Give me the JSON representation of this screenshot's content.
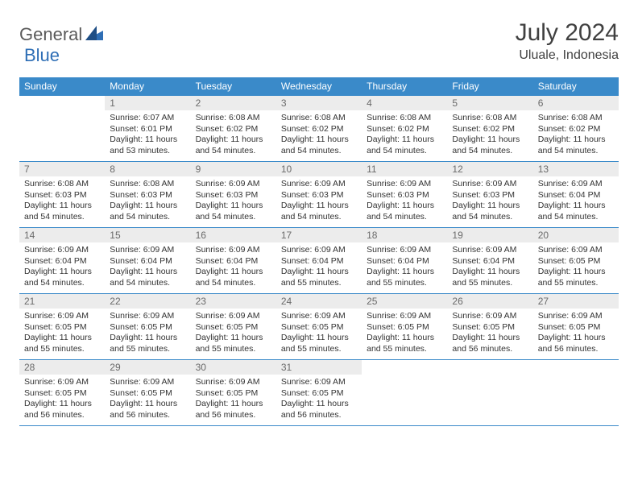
{
  "brand": {
    "part1": "General",
    "part2": "Blue"
  },
  "title": "July 2024",
  "location": "Uluale, Indonesia",
  "colors": {
    "header_bg": "#3a8ac9",
    "header_text": "#ffffff",
    "daynum_bg": "#ececec",
    "daynum_text": "#6a6a6a",
    "border": "#3a8ac9",
    "title_color": "#404040"
  },
  "daysOfWeek": [
    "Sunday",
    "Monday",
    "Tuesday",
    "Wednesday",
    "Thursday",
    "Friday",
    "Saturday"
  ],
  "weeks": [
    [
      {
        "n": "",
        "sr": "",
        "ss": "",
        "dl": ""
      },
      {
        "n": "1",
        "sr": "6:07 AM",
        "ss": "6:01 PM",
        "dl": "11 hours and 53 minutes."
      },
      {
        "n": "2",
        "sr": "6:08 AM",
        "ss": "6:02 PM",
        "dl": "11 hours and 54 minutes."
      },
      {
        "n": "3",
        "sr": "6:08 AM",
        "ss": "6:02 PM",
        "dl": "11 hours and 54 minutes."
      },
      {
        "n": "4",
        "sr": "6:08 AM",
        "ss": "6:02 PM",
        "dl": "11 hours and 54 minutes."
      },
      {
        "n": "5",
        "sr": "6:08 AM",
        "ss": "6:02 PM",
        "dl": "11 hours and 54 minutes."
      },
      {
        "n": "6",
        "sr": "6:08 AM",
        "ss": "6:02 PM",
        "dl": "11 hours and 54 minutes."
      }
    ],
    [
      {
        "n": "7",
        "sr": "6:08 AM",
        "ss": "6:03 PM",
        "dl": "11 hours and 54 minutes."
      },
      {
        "n": "8",
        "sr": "6:08 AM",
        "ss": "6:03 PM",
        "dl": "11 hours and 54 minutes."
      },
      {
        "n": "9",
        "sr": "6:09 AM",
        "ss": "6:03 PM",
        "dl": "11 hours and 54 minutes."
      },
      {
        "n": "10",
        "sr": "6:09 AM",
        "ss": "6:03 PM",
        "dl": "11 hours and 54 minutes."
      },
      {
        "n": "11",
        "sr": "6:09 AM",
        "ss": "6:03 PM",
        "dl": "11 hours and 54 minutes."
      },
      {
        "n": "12",
        "sr": "6:09 AM",
        "ss": "6:03 PM",
        "dl": "11 hours and 54 minutes."
      },
      {
        "n": "13",
        "sr": "6:09 AM",
        "ss": "6:04 PM",
        "dl": "11 hours and 54 minutes."
      }
    ],
    [
      {
        "n": "14",
        "sr": "6:09 AM",
        "ss": "6:04 PM",
        "dl": "11 hours and 54 minutes."
      },
      {
        "n": "15",
        "sr": "6:09 AM",
        "ss": "6:04 PM",
        "dl": "11 hours and 54 minutes."
      },
      {
        "n": "16",
        "sr": "6:09 AM",
        "ss": "6:04 PM",
        "dl": "11 hours and 54 minutes."
      },
      {
        "n": "17",
        "sr": "6:09 AM",
        "ss": "6:04 PM",
        "dl": "11 hours and 55 minutes."
      },
      {
        "n": "18",
        "sr": "6:09 AM",
        "ss": "6:04 PM",
        "dl": "11 hours and 55 minutes."
      },
      {
        "n": "19",
        "sr": "6:09 AM",
        "ss": "6:04 PM",
        "dl": "11 hours and 55 minutes."
      },
      {
        "n": "20",
        "sr": "6:09 AM",
        "ss": "6:05 PM",
        "dl": "11 hours and 55 minutes."
      }
    ],
    [
      {
        "n": "21",
        "sr": "6:09 AM",
        "ss": "6:05 PM",
        "dl": "11 hours and 55 minutes."
      },
      {
        "n": "22",
        "sr": "6:09 AM",
        "ss": "6:05 PM",
        "dl": "11 hours and 55 minutes."
      },
      {
        "n": "23",
        "sr": "6:09 AM",
        "ss": "6:05 PM",
        "dl": "11 hours and 55 minutes."
      },
      {
        "n": "24",
        "sr": "6:09 AM",
        "ss": "6:05 PM",
        "dl": "11 hours and 55 minutes."
      },
      {
        "n": "25",
        "sr": "6:09 AM",
        "ss": "6:05 PM",
        "dl": "11 hours and 55 minutes."
      },
      {
        "n": "26",
        "sr": "6:09 AM",
        "ss": "6:05 PM",
        "dl": "11 hours and 56 minutes."
      },
      {
        "n": "27",
        "sr": "6:09 AM",
        "ss": "6:05 PM",
        "dl": "11 hours and 56 minutes."
      }
    ],
    [
      {
        "n": "28",
        "sr": "6:09 AM",
        "ss": "6:05 PM",
        "dl": "11 hours and 56 minutes."
      },
      {
        "n": "29",
        "sr": "6:09 AM",
        "ss": "6:05 PM",
        "dl": "11 hours and 56 minutes."
      },
      {
        "n": "30",
        "sr": "6:09 AM",
        "ss": "6:05 PM",
        "dl": "11 hours and 56 minutes."
      },
      {
        "n": "31",
        "sr": "6:09 AM",
        "ss": "6:05 PM",
        "dl": "11 hours and 56 minutes."
      },
      {
        "n": "",
        "sr": "",
        "ss": "",
        "dl": ""
      },
      {
        "n": "",
        "sr": "",
        "ss": "",
        "dl": ""
      },
      {
        "n": "",
        "sr": "",
        "ss": "",
        "dl": ""
      }
    ]
  ],
  "labels": {
    "sunrise": "Sunrise:",
    "sunset": "Sunset:",
    "daylight": "Daylight:"
  }
}
